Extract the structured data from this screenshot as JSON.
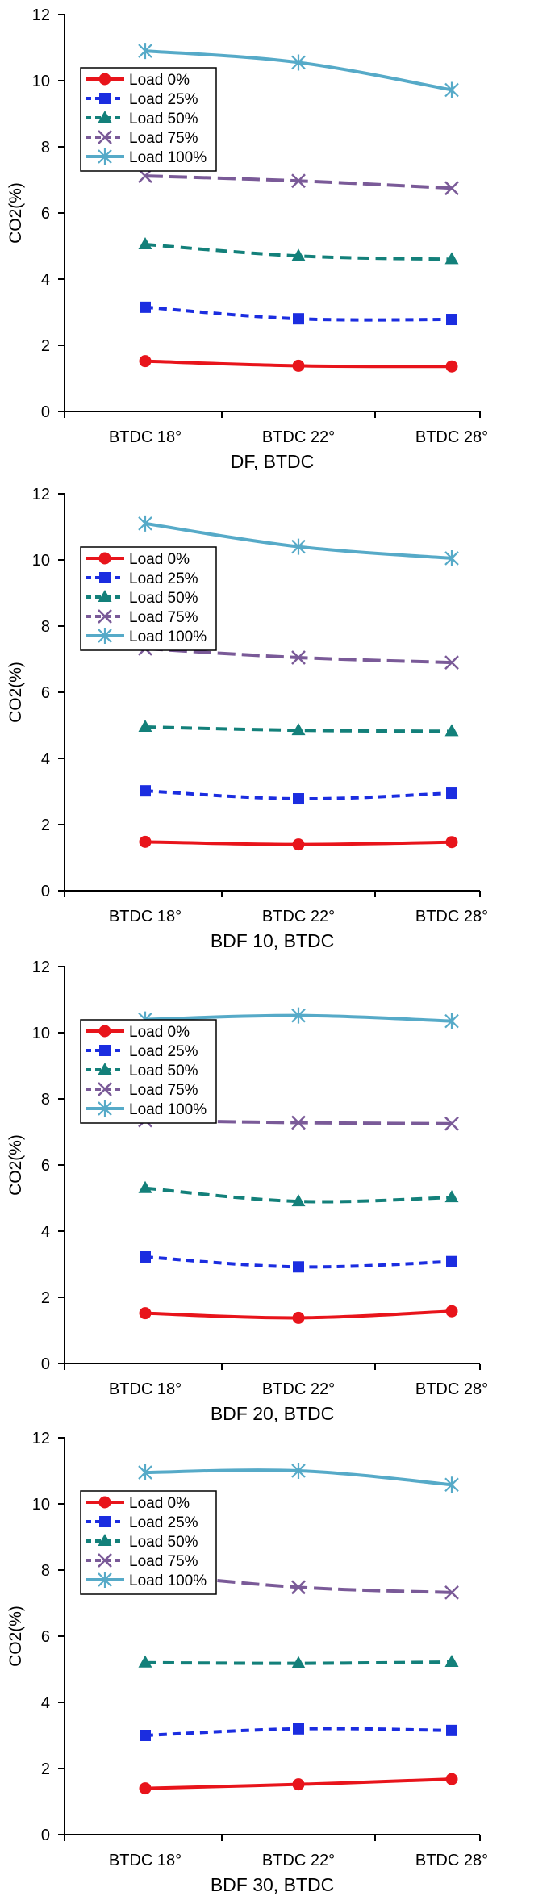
{
  "chart_data": [
    {
      "type": "line",
      "title": "",
      "xlabel": "DF, BTDC",
      "ylabel": "CO2(%)",
      "ylim": [
        0,
        12
      ],
      "yticks": [
        0,
        2,
        4,
        6,
        8,
        10,
        12
      ],
      "categories": [
        "BTDC 18°",
        "BTDC 22°",
        "BTDC 28°"
      ],
      "grid": false,
      "legend_position": "top-left",
      "series": [
        {
          "name": "Load 0%",
          "values": [
            1.52,
            1.38,
            1.36
          ]
        },
        {
          "name": "Load 25%",
          "values": [
            3.15,
            2.8,
            2.78
          ]
        },
        {
          "name": "Load 50%",
          "values": [
            5.05,
            4.7,
            4.6
          ]
        },
        {
          "name": "Load 75%",
          "values": [
            7.12,
            6.97,
            6.75
          ]
        },
        {
          "name": "Load 100%",
          "values": [
            10.9,
            10.55,
            9.72
          ]
        }
      ]
    },
    {
      "type": "line",
      "title": "",
      "xlabel": "BDF 10, BTDC",
      "ylabel": "CO2(%)",
      "ylim": [
        0,
        12
      ],
      "yticks": [
        0,
        2,
        4,
        6,
        8,
        10,
        12
      ],
      "categories": [
        "BTDC 18°",
        "BTDC 22°",
        "BTDC 28°"
      ],
      "grid": false,
      "legend_position": "top-left",
      "series": [
        {
          "name": "Load 0%",
          "values": [
            1.48,
            1.4,
            1.47
          ]
        },
        {
          "name": "Load 25%",
          "values": [
            3.02,
            2.78,
            2.95
          ]
        },
        {
          "name": "Load 50%",
          "values": [
            4.95,
            4.85,
            4.82
          ]
        },
        {
          "name": "Load 75%",
          "values": [
            7.32,
            7.05,
            6.9
          ]
        },
        {
          "name": "Load 100%",
          "values": [
            11.1,
            10.4,
            10.05
          ]
        }
      ]
    },
    {
      "type": "line",
      "title": "",
      "xlabel": "BDF 20, BTDC",
      "ylabel": "CO2(%)",
      "ylim": [
        0,
        12
      ],
      "yticks": [
        0,
        2,
        4,
        6,
        8,
        10,
        12
      ],
      "categories": [
        "BTDC 18°",
        "BTDC 22°",
        "BTDC 28°"
      ],
      "grid": false,
      "legend_position": "top-left",
      "series": [
        {
          "name": "Load 0%",
          "values": [
            1.52,
            1.38,
            1.58
          ]
        },
        {
          "name": "Load 25%",
          "values": [
            3.22,
            2.92,
            3.08
          ]
        },
        {
          "name": "Load 50%",
          "values": [
            5.3,
            4.9,
            5.02
          ]
        },
        {
          "name": "Load 75%",
          "values": [
            7.35,
            7.28,
            7.25
          ]
        },
        {
          "name": "Load 100%",
          "values": [
            10.4,
            10.52,
            10.35
          ]
        }
      ]
    },
    {
      "type": "line",
      "title": "",
      "xlabel": "BDF 30, BTDC",
      "ylabel": "CO2(%)",
      "ylim": [
        0,
        12
      ],
      "yticks": [
        0,
        2,
        4,
        6,
        8,
        10,
        12
      ],
      "categories": [
        "BTDC 18°",
        "BTDC 22°",
        "BTDC 28°"
      ],
      "grid": false,
      "legend_position": "top-left",
      "series": [
        {
          "name": "Load 0%",
          "values": [
            1.4,
            1.52,
            1.68
          ]
        },
        {
          "name": "Load 25%",
          "values": [
            3.0,
            3.2,
            3.15
          ]
        },
        {
          "name": "Load 50%",
          "values": [
            5.2,
            5.18,
            5.22
          ]
        },
        {
          "name": "Load 75%",
          "values": [
            7.9,
            7.48,
            7.32
          ]
        },
        {
          "name": "Load 100%",
          "values": [
            10.95,
            11.0,
            10.58
          ]
        }
      ]
    }
  ],
  "styles": {
    "series_colors": [
      "#e8141b",
      "#1b2de0",
      "#13807a",
      "#7a5a98",
      "#56aac8"
    ],
    "series_dash": [
      "",
      "10,7",
      "14,8",
      "22,8",
      ""
    ],
    "series_markers": [
      "circle",
      "square",
      "triangle",
      "x",
      "asterisk"
    ]
  }
}
